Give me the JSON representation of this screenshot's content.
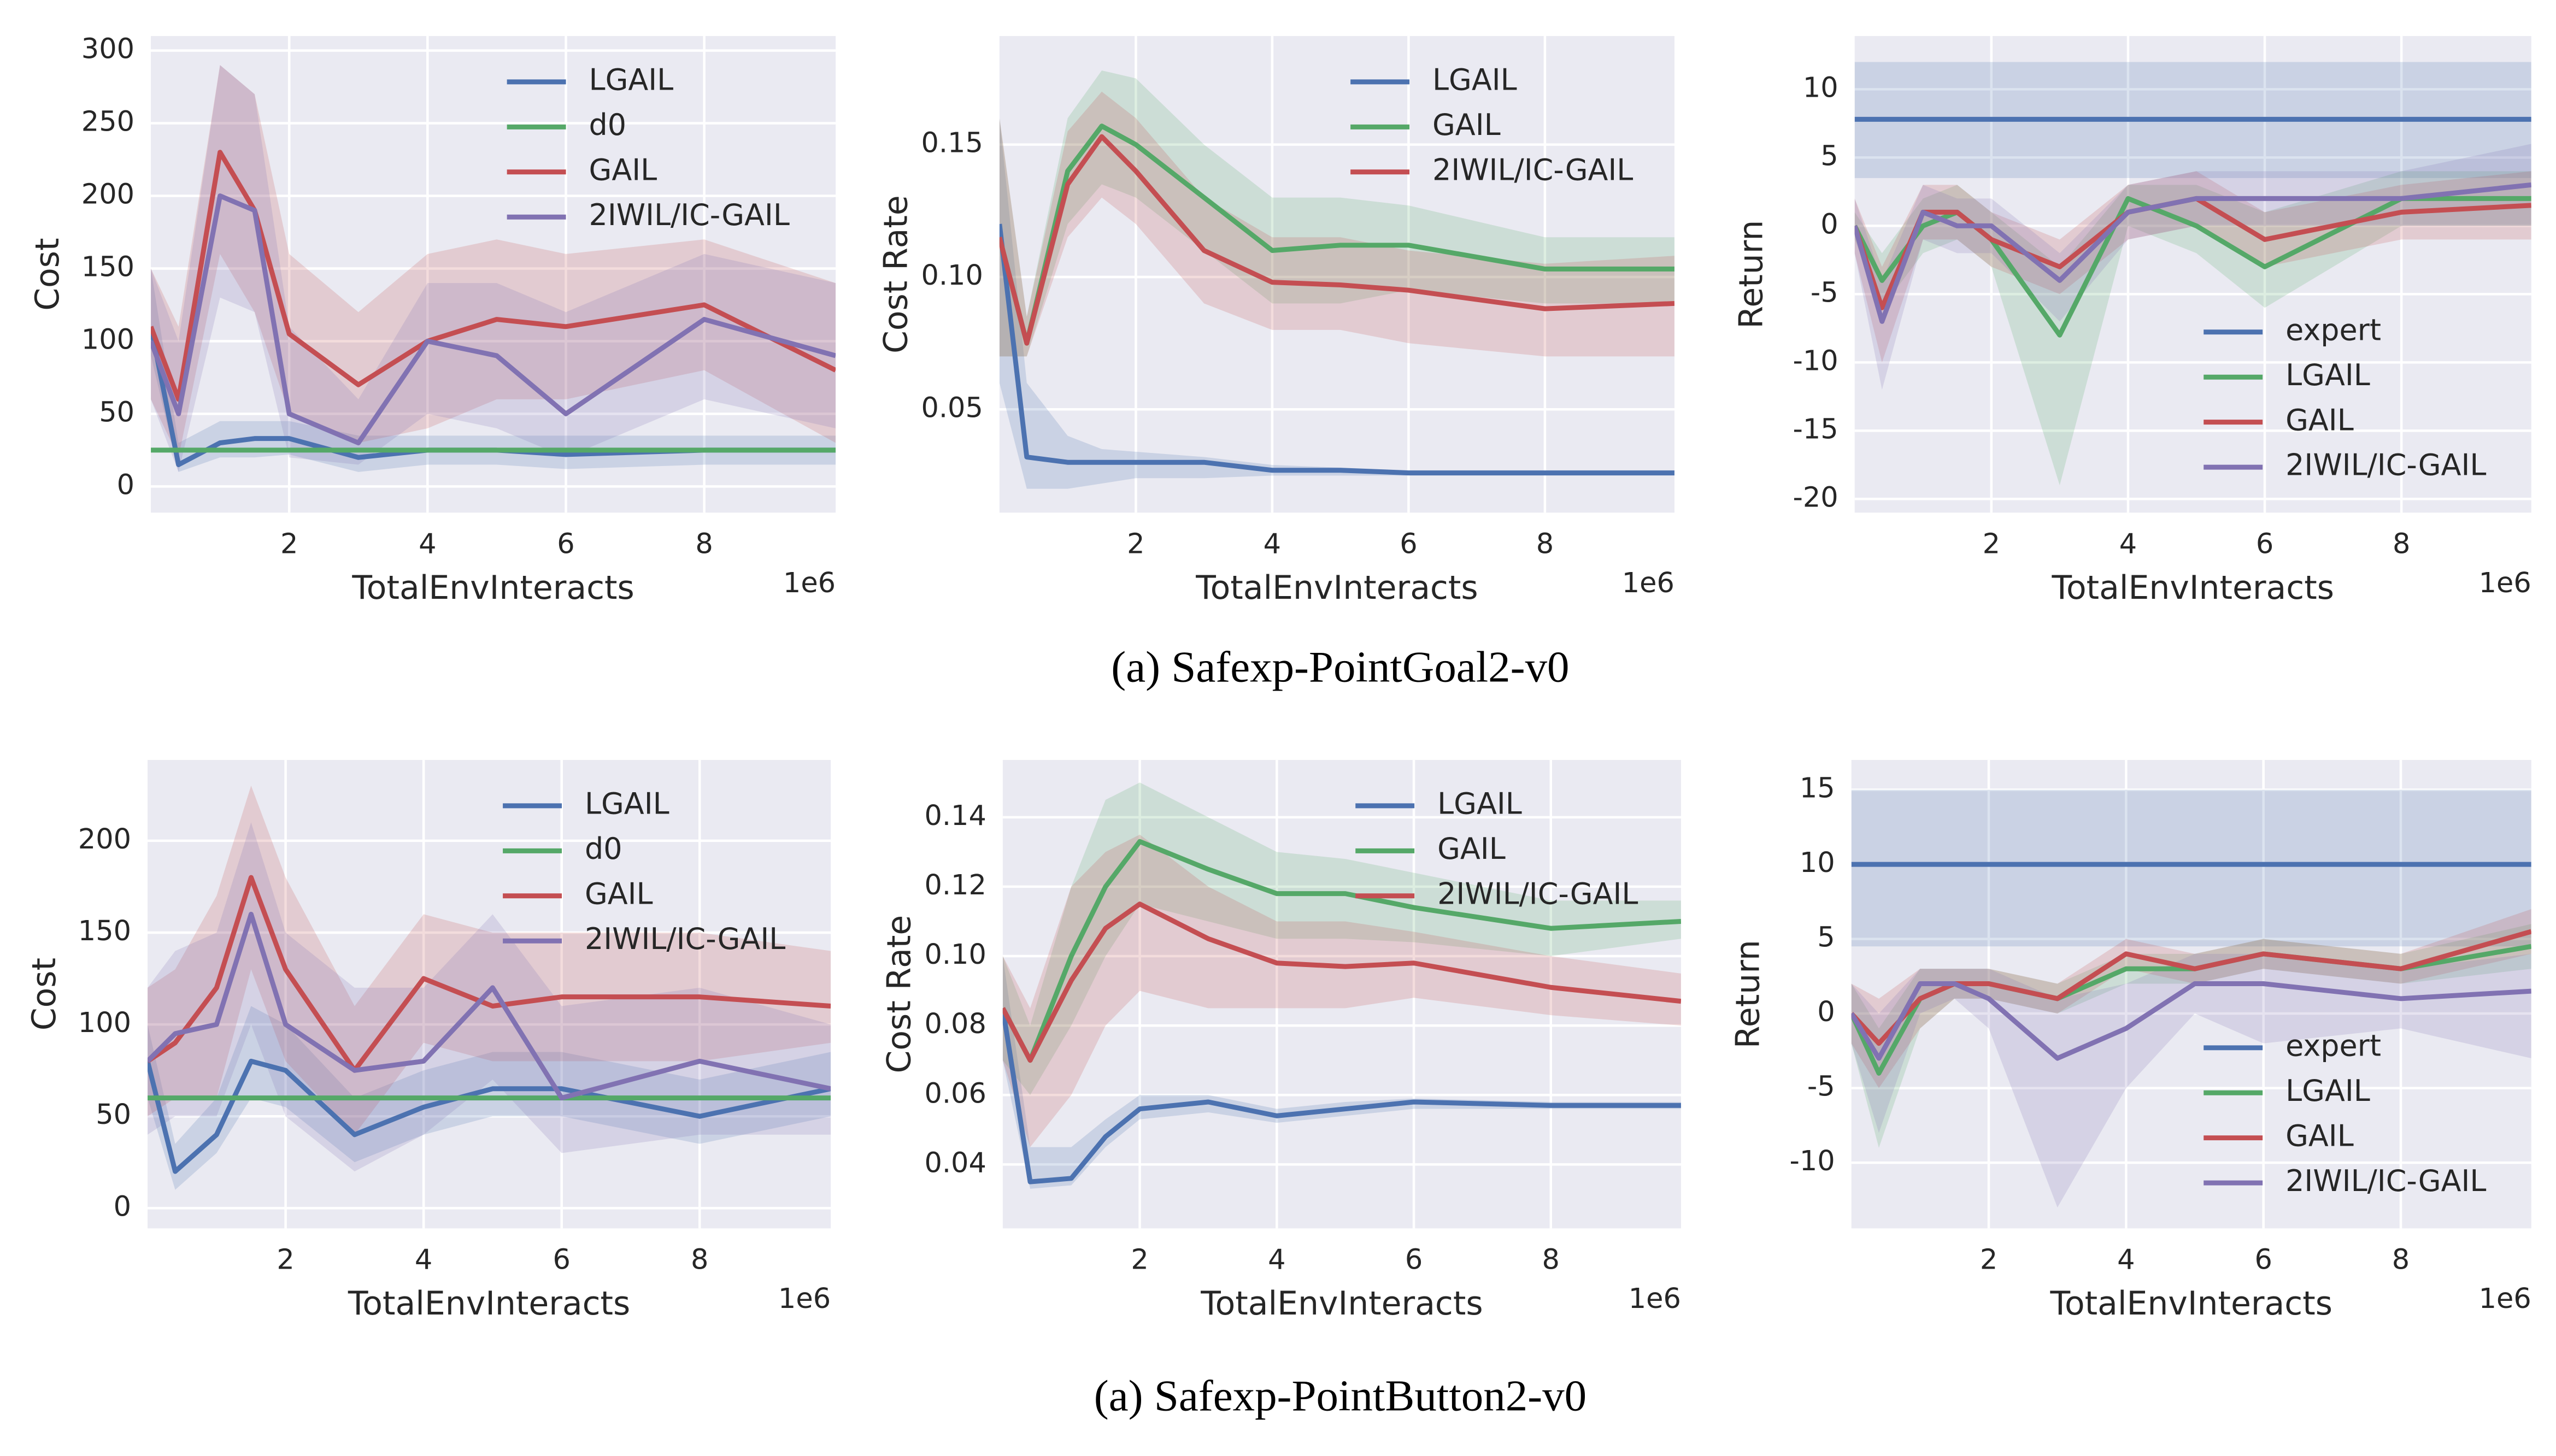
{
  "captions": [
    "(a) Safexp-PointGoal2-v0",
    "(a) Safexp-PointButton2-v0"
  ],
  "chart_data": [
    {
      "type": "line",
      "ylabel": "Cost",
      "xlabel": "TotalEnvInteracts",
      "x_offset_label": "1e6",
      "grid": true,
      "legend": "upper center",
      "x": [
        0,
        0.4,
        1,
        1.5,
        2,
        3,
        4,
        5,
        6,
        8,
        9.9
      ],
      "xlim": [
        0,
        9.9
      ],
      "xticks": [
        2,
        4,
        6,
        8
      ],
      "ylim": [
        -18,
        310
      ],
      "yticks": [
        0,
        50,
        100,
        150,
        200,
        250,
        300
      ],
      "series": [
        {
          "name": "LGAIL",
          "color": "#4c72b0",
          "values": [
            110,
            15,
            30,
            33,
            33,
            20,
            25,
            25,
            22,
            25,
            25
          ],
          "lower": [
            90,
            10,
            20,
            20,
            22,
            10,
            15,
            15,
            12,
            15,
            15
          ],
          "upper": [
            150,
            30,
            45,
            45,
            45,
            35,
            35,
            35,
            35,
            35,
            35
          ]
        },
        {
          "name": "d0",
          "color": "#55a868",
          "values": [
            25,
            25,
            25,
            25,
            25,
            25,
            25,
            25,
            25,
            25,
            25
          ]
        },
        {
          "name": "GAIL",
          "color": "#c44e52",
          "values": [
            110,
            60,
            230,
            190,
            105,
            70,
            100,
            115,
            110,
            125,
            80
          ],
          "lower": [
            60,
            20,
            160,
            120,
            50,
            30,
            40,
            60,
            60,
            80,
            30
          ],
          "upper": [
            150,
            110,
            290,
            270,
            160,
            120,
            160,
            170,
            160,
            170,
            140
          ]
        },
        {
          "name": "2IWIL/IC-GAIL",
          "color": "#8172b2",
          "values": [
            100,
            50,
            200,
            190,
            50,
            30,
            100,
            90,
            50,
            115,
            90
          ],
          "lower": [
            60,
            10,
            130,
            120,
            20,
            15,
            50,
            40,
            20,
            60,
            40
          ],
          "upper": [
            150,
            100,
            290,
            270,
            110,
            60,
            140,
            140,
            120,
            160,
            140
          ]
        }
      ]
    },
    {
      "type": "line",
      "ylabel": "Cost Rate",
      "xlabel": "TotalEnvInteracts",
      "x_offset_label": "1e6",
      "grid": true,
      "legend": "upper center",
      "x": [
        0,
        0.4,
        1,
        1.5,
        2,
        3,
        4,
        5,
        6,
        8,
        9.9
      ],
      "xlim": [
        0,
        9.9
      ],
      "xticks": [
        2,
        4,
        6,
        8
      ],
      "ylim": [
        0.011,
        0.191
      ],
      "yticks": [
        {
          "value": 0.05,
          "label": "0.05"
        },
        {
          "value": 0.1,
          "label": "0.10"
        },
        {
          "value": 0.15,
          "label": "0.15"
        }
      ],
      "series": [
        {
          "name": "LGAIL",
          "color": "#4c72b0",
          "values": [
            0.12,
            0.032,
            0.03,
            0.03,
            0.03,
            0.03,
            0.027,
            0.027,
            0.026,
            0.026,
            0.026
          ],
          "lower": [
            0.06,
            0.02,
            0.02,
            0.022,
            0.024,
            0.024,
            0.025,
            0.025,
            0.025,
            0.025,
            0.025
          ],
          "upper": [
            0.16,
            0.06,
            0.04,
            0.035,
            0.034,
            0.032,
            0.029,
            0.028,
            0.027,
            0.027,
            0.027
          ]
        },
        {
          "name": "GAIL",
          "color": "#55a868",
          "values": [
            0.115,
            0.075,
            0.14,
            0.157,
            0.15,
            0.13,
            0.11,
            0.112,
            0.112,
            0.103,
            0.103
          ],
          "lower": [
            0.07,
            0.07,
            0.12,
            0.135,
            0.13,
            0.11,
            0.09,
            0.09,
            0.095,
            0.09,
            0.09
          ],
          "upper": [
            0.16,
            0.085,
            0.16,
            0.178,
            0.175,
            0.15,
            0.13,
            0.13,
            0.127,
            0.115,
            0.115
          ]
        },
        {
          "name": "2IWIL/IC-GAIL",
          "color": "#c44e52",
          "values": [
            0.115,
            0.075,
            0.135,
            0.153,
            0.14,
            0.11,
            0.098,
            0.097,
            0.095,
            0.088,
            0.09
          ],
          "lower": [
            0.07,
            0.07,
            0.115,
            0.13,
            0.12,
            0.09,
            0.08,
            0.08,
            0.075,
            0.07,
            0.07
          ],
          "upper": [
            0.16,
            0.085,
            0.155,
            0.17,
            0.16,
            0.13,
            0.115,
            0.115,
            0.11,
            0.105,
            0.108
          ]
        }
      ]
    },
    {
      "type": "line",
      "ylabel": "Return",
      "xlabel": "TotalEnvInteracts",
      "x_offset_label": "1e6",
      "grid": true,
      "legend": "lower right",
      "x": [
        0,
        0.4,
        1,
        1.5,
        2,
        3,
        4,
        5,
        6,
        8,
        9.9
      ],
      "xlim": [
        0,
        9.9
      ],
      "xticks": [
        2,
        4,
        6,
        8
      ],
      "ylim": [
        -21,
        13.9
      ],
      "yticks": [
        -20,
        -15,
        -10,
        -5,
        0,
        5,
        10
      ],
      "series": [
        {
          "name": "expert",
          "color": "#4c72b0",
          "values": [
            7.8,
            7.8,
            7.8,
            7.8,
            7.8,
            7.8,
            7.8,
            7.8,
            7.8,
            7.8,
            7.8
          ],
          "lower": [
            3.5,
            3.5,
            3.5,
            3.5,
            3.5,
            3.5,
            3.5,
            3.5,
            3.5,
            3.5,
            3.5
          ],
          "upper": [
            12,
            12,
            12,
            12,
            12,
            12,
            12,
            12,
            12,
            12,
            12
          ]
        },
        {
          "name": "LGAIL",
          "color": "#55a868",
          "values": [
            0,
            -4,
            0,
            1,
            -1,
            -8,
            2,
            0,
            -3,
            2,
            2
          ],
          "lower": [
            -1,
            -6,
            -2,
            -1,
            -3,
            -19,
            0,
            -2,
            -6,
            0,
            0
          ],
          "upper": [
            1,
            -2,
            2,
            3,
            1,
            -3,
            3,
            3,
            1,
            4,
            4
          ]
        },
        {
          "name": "GAIL",
          "color": "#c44e52",
          "values": [
            0,
            -6,
            1,
            1,
            -1,
            -3,
            1,
            2,
            -1,
            1,
            1.5
          ],
          "lower": [
            -2,
            -10,
            -1,
            -1,
            -3,
            -5,
            -1,
            0,
            -3,
            -1,
            -1
          ],
          "upper": [
            2,
            -3,
            3,
            3,
            1,
            -1,
            3,
            4,
            1,
            3,
            4
          ]
        },
        {
          "name": "2IWIL/IC-GAIL",
          "color": "#8172b2",
          "values": [
            0,
            -7,
            1,
            0,
            0,
            -4,
            1,
            2,
            2,
            2,
            3
          ],
          "lower": [
            -2,
            -12,
            -1,
            -2,
            -2,
            -7,
            -1,
            0,
            0,
            0,
            0
          ],
          "upper": [
            2,
            -4,
            3,
            2,
            2,
            -2,
            3,
            4,
            4,
            4,
            6
          ]
        }
      ]
    },
    {
      "type": "line",
      "ylabel": "Cost",
      "xlabel": "TotalEnvInteracts",
      "x_offset_label": "1e6",
      "grid": true,
      "legend": "upper center",
      "x": [
        0,
        0.4,
        1,
        1.5,
        2,
        3,
        4,
        5,
        6,
        8,
        9.9
      ],
      "xlim": [
        0,
        9.9
      ],
      "xticks": [
        2,
        4,
        6,
        8
      ],
      "ylim": [
        -11,
        244
      ],
      "yticks": [
        0,
        50,
        100,
        150,
        200
      ],
      "series": [
        {
          "name": "LGAIL",
          "color": "#4c72b0",
          "values": [
            80,
            20,
            40,
            80,
            75,
            40,
            55,
            65,
            65,
            50,
            65
          ],
          "lower": [
            60,
            10,
            30,
            60,
            55,
            25,
            40,
            50,
            50,
            35,
            50
          ],
          "upper": [
            100,
            35,
            60,
            110,
            100,
            60,
            75,
            85,
            85,
            70,
            85
          ]
        },
        {
          "name": "d0",
          "color": "#55a868",
          "values": [
            60,
            60,
            60,
            60,
            60,
            60,
            60,
            60,
            60,
            60,
            60
          ]
        },
        {
          "name": "GAIL",
          "color": "#c44e52",
          "values": [
            80,
            90,
            120,
            180,
            130,
            75,
            125,
            110,
            115,
            115,
            110
          ],
          "lower": [
            50,
            60,
            60,
            130,
            80,
            40,
            90,
            80,
            80,
            80,
            90
          ],
          "upper": [
            120,
            130,
            170,
            230,
            180,
            110,
            160,
            150,
            150,
            150,
            140
          ]
        },
        {
          "name": "2IWIL/IC-GAIL",
          "color": "#8172b2",
          "values": [
            80,
            95,
            100,
            160,
            100,
            75,
            80,
            120,
            60,
            80,
            65
          ],
          "lower": [
            40,
            50,
            50,
            100,
            50,
            20,
            40,
            70,
            30,
            40,
            40
          ],
          "upper": [
            120,
            140,
            150,
            210,
            150,
            120,
            120,
            160,
            110,
            120,
            100
          ]
        }
      ]
    },
    {
      "type": "line",
      "ylabel": "Cost Rate",
      "xlabel": "TotalEnvInteracts",
      "x_offset_label": "1e6",
      "grid": true,
      "legend": "upper center",
      "x": [
        0,
        0.4,
        1,
        1.5,
        2,
        3,
        4,
        5,
        6,
        8,
        9.9
      ],
      "xlim": [
        0,
        9.9
      ],
      "xticks": [
        2,
        4,
        6,
        8
      ],
      "ylim": [
        0.0216,
        0.1565
      ],
      "yticks": [
        0.04,
        0.06,
        0.08,
        {
          "value": 0.1,
          "label": "0.10"
        },
        0.12,
        0.14
      ],
      "series": [
        {
          "name": "LGAIL",
          "color": "#4c72b0",
          "values": [
            0.085,
            0.035,
            0.036,
            0.048,
            0.056,
            0.058,
            0.054,
            0.056,
            0.058,
            0.057,
            0.057
          ],
          "lower": [
            0.07,
            0.033,
            0.034,
            0.045,
            0.053,
            0.055,
            0.052,
            0.054,
            0.056,
            0.056,
            0.056
          ],
          "upper": [
            0.1,
            0.045,
            0.045,
            0.053,
            0.06,
            0.06,
            0.056,
            0.058,
            0.059,
            0.058,
            0.058
          ]
        },
        {
          "name": "GAIL",
          "color": "#55a868",
          "values": [
            0.085,
            0.07,
            0.1,
            0.12,
            0.133,
            0.125,
            0.118,
            0.118,
            0.114,
            0.108,
            0.11
          ],
          "lower": [
            0.07,
            0.06,
            0.08,
            0.1,
            0.115,
            0.11,
            0.105,
            0.105,
            0.104,
            0.1,
            0.105
          ],
          "upper": [
            0.1,
            0.08,
            0.12,
            0.145,
            0.15,
            0.14,
            0.13,
            0.128,
            0.124,
            0.116,
            0.116
          ]
        },
        {
          "name": "2IWIL/IC-GAIL",
          "color": "#c44e52",
          "values": [
            0.085,
            0.07,
            0.093,
            0.108,
            0.115,
            0.105,
            0.098,
            0.097,
            0.098,
            0.091,
            0.087
          ],
          "lower": [
            0.07,
            0.045,
            0.06,
            0.08,
            0.09,
            0.085,
            0.085,
            0.085,
            0.088,
            0.083,
            0.08
          ],
          "upper": [
            0.1,
            0.085,
            0.12,
            0.13,
            0.135,
            0.12,
            0.11,
            0.11,
            0.107,
            0.1,
            0.095
          ]
        }
      ]
    },
    {
      "type": "line",
      "ylabel": "Return",
      "xlabel": "TotalEnvInteracts",
      "x_offset_label": "1e6",
      "grid": true,
      "legend": "lower right",
      "x": [
        0,
        0.4,
        1,
        1.5,
        2,
        3,
        4,
        5,
        6,
        8,
        9.9
      ],
      "xlim": [
        0,
        9.9
      ],
      "xticks": [
        2,
        4,
        6,
        8
      ],
      "ylim": [
        -14.4,
        17
      ],
      "yticks": [
        -10,
        -5,
        0,
        5,
        10,
        15
      ],
      "series": [
        {
          "name": "expert",
          "color": "#4c72b0",
          "values": [
            10,
            10,
            10,
            10,
            10,
            10,
            10,
            10,
            10,
            10,
            10
          ],
          "lower": [
            4.5,
            4.5,
            4.5,
            4.5,
            4.5,
            4.5,
            4.5,
            4.5,
            4.5,
            4.5,
            4.5
          ],
          "upper": [
            15,
            15,
            15,
            15,
            15,
            15,
            15,
            15,
            15,
            15,
            15
          ]
        },
        {
          "name": "LGAIL",
          "color": "#55a868",
          "values": [
            0,
            -4,
            1,
            2,
            2,
            1,
            3,
            3,
            4,
            3,
            4.5
          ],
          "lower": [
            -2,
            -9,
            -1,
            1,
            1,
            0,
            2,
            2,
            3,
            2,
            3
          ],
          "upper": [
            2,
            -1,
            3,
            3,
            3,
            2,
            4,
            4,
            5,
            4,
            6
          ]
        },
        {
          "name": "GAIL",
          "color": "#c44e52",
          "values": [
            0,
            -2,
            1,
            2,
            2,
            1,
            4,
            3,
            4,
            3,
            5.5
          ],
          "lower": [
            -2,
            -5,
            -1,
            1,
            1,
            0,
            3,
            2,
            3,
            2,
            4
          ],
          "upper": [
            2,
            1,
            3,
            3,
            3,
            2,
            5,
            4,
            5,
            4,
            7
          ]
        },
        {
          "name": "2IWIL/IC-GAIL",
          "color": "#8172b2",
          "values": [
            0,
            -3,
            2,
            2,
            1,
            -3,
            -1,
            2,
            2,
            1,
            1.5
          ],
          "lower": [
            -2,
            -8,
            0,
            1,
            -1,
            -13,
            -5,
            0,
            -2,
            -1,
            -3
          ],
          "upper": [
            2,
            0,
            3,
            3,
            3,
            1,
            2,
            4,
            4,
            3,
            4
          ]
        }
      ]
    }
  ]
}
